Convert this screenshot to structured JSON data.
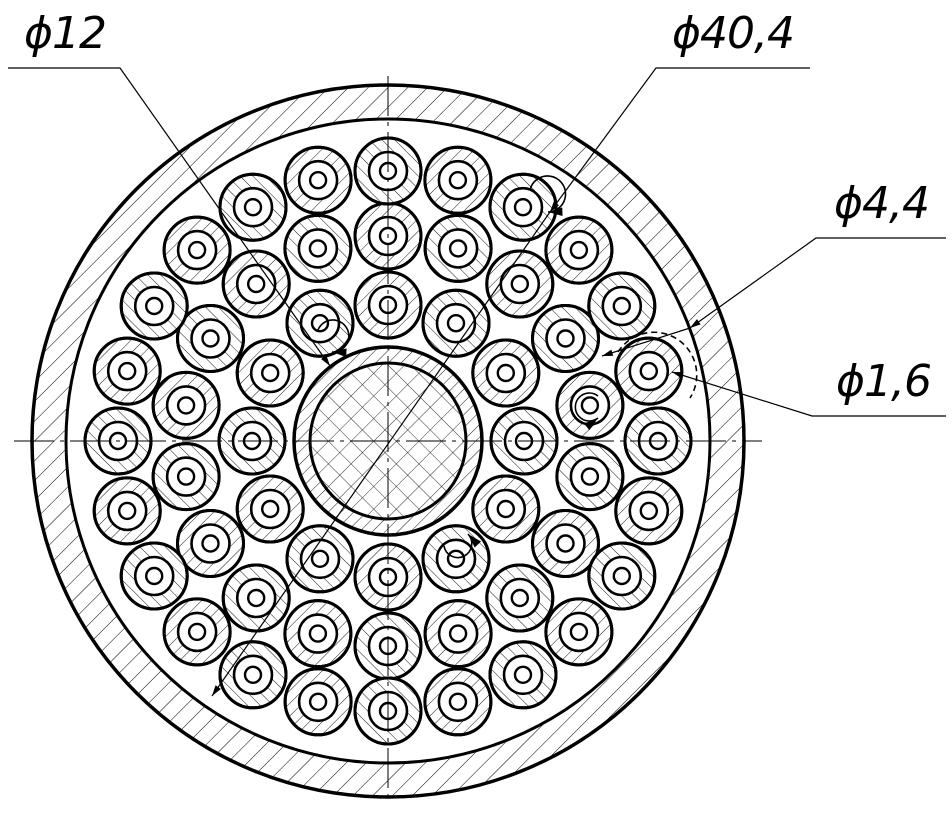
{
  "labels": {
    "outer_diameter": "ϕ40,4",
    "core_diameter": "ϕ12",
    "wire_diameter": "ϕ4,4",
    "wire_bore": "ϕ1,6"
  },
  "colors": {
    "stroke": "#000000",
    "background": "#ffffff"
  },
  "rings": [
    {
      "name": "inner-ring",
      "count": 12
    },
    {
      "name": "middle-ring",
      "count": 18
    },
    {
      "name": "outer-ring",
      "count": 24
    }
  ]
}
